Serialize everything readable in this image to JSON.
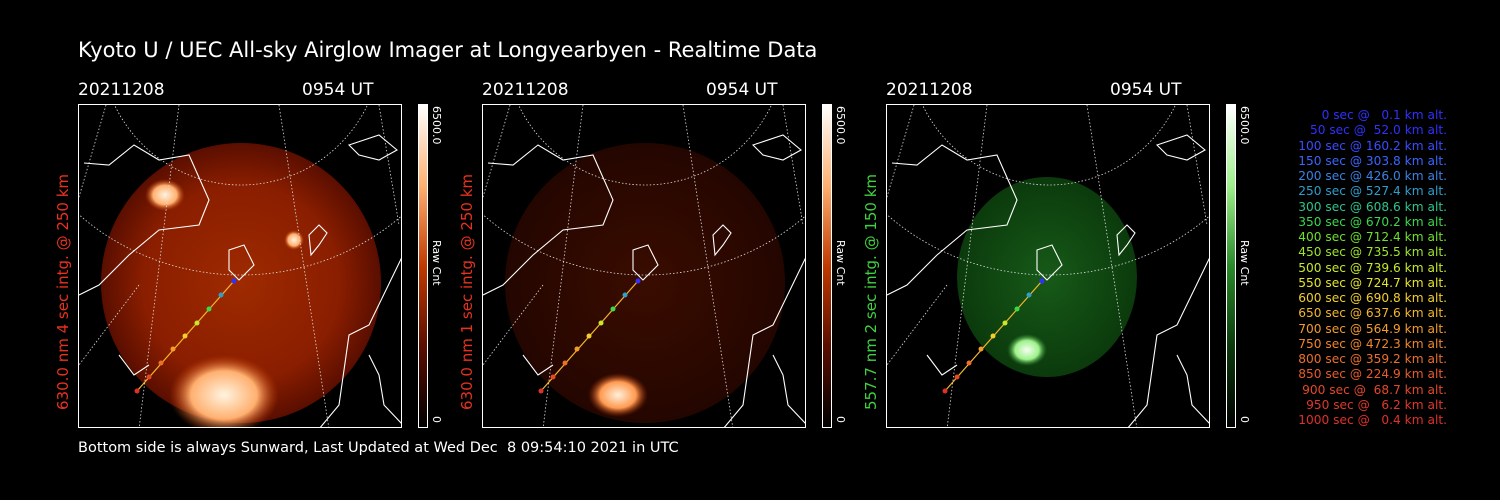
{
  "header": {
    "title": "Kyoto U / UEC All-sky Airglow Imager at Longyearbyen - Realtime Data"
  },
  "footer": {
    "text": "Bottom side is always Sunward, Last Updated at Wed Dec  8 09:54:10 2021 in UTC"
  },
  "panels": [
    {
      "date": "20211208",
      "time": "0954 UT",
      "side_label": "630.0 nm 4 sec intg. @ 250 km",
      "side_color": "#e8321e",
      "colorbar_max": "6500.0",
      "colorbar_label": "Raw Cnt",
      "colorbar_min": "0"
    },
    {
      "date": "20211208",
      "time": "0954 UT",
      "side_label": "630.0 nm 1 sec intg. @ 250 km",
      "side_color": "#e8321e",
      "colorbar_max": "6500.0",
      "colorbar_label": "Raw Cnt",
      "colorbar_min": "0"
    },
    {
      "date": "20211208",
      "time": "0954 UT",
      "side_label": "557.7 nm 2 sec intg. @ 150 km",
      "side_color": "#3fd13f",
      "colorbar_max": "6500.0",
      "colorbar_label": "Raw Cnt",
      "colorbar_min": "0"
    }
  ],
  "legend": [
    {
      "text": "0 sec @   0.1 km alt.",
      "color": "#3030ff"
    },
    {
      "text": "50 sec @  52.0 km alt.",
      "color": "#3030ff"
    },
    {
      "text": "100 sec @ 160.2 km alt.",
      "color": "#3a4cff"
    },
    {
      "text": "150 sec @ 303.8 km alt.",
      "color": "#3a66ff"
    },
    {
      "text": "200 sec @ 426.0 km alt.",
      "color": "#3a82e6"
    },
    {
      "text": "250 sec @ 527.4 km alt.",
      "color": "#2f9ecc"
    },
    {
      "text": "300 sec @ 608.6 km alt.",
      "color": "#2fc48c"
    },
    {
      "text": "350 sec @ 670.2 km alt.",
      "color": "#3ad84a"
    },
    {
      "text": "400 sec @ 712.4 km alt.",
      "color": "#6ee02c"
    },
    {
      "text": "450 sec @ 735.5 km alt.",
      "color": "#9ee42a"
    },
    {
      "text": "500 sec @ 739.6 km alt.",
      "color": "#c8e82a"
    },
    {
      "text": "550 sec @ 724.7 km alt.",
      "color": "#e6e42a"
    },
    {
      "text": "600 sec @ 690.8 km alt.",
      "color": "#f2d02a"
    },
    {
      "text": "650 sec @ 637.6 km alt.",
      "color": "#f4b62a"
    },
    {
      "text": "700 sec @ 564.9 km alt.",
      "color": "#f49c2a"
    },
    {
      "text": "750 sec @ 472.3 km alt.",
      "color": "#f0862a"
    },
    {
      "text": "800 sec @ 359.2 km alt.",
      "color": "#ec702a"
    },
    {
      "text": "850 sec @ 224.9 km alt.",
      "color": "#e85c2a"
    },
    {
      "text": "900 sec @  68.7 km alt.",
      "color": "#e4482a"
    },
    {
      "text": "950 sec @   6.2 km alt.",
      "color": "#e0382a"
    },
    {
      "text": "1000 sec @   0.4 km alt.",
      "color": "#e0302a"
    }
  ],
  "colors": {
    "red_glow": "#8a1a00",
    "green_glow": "#0f4a10",
    "coast": "#ffffff"
  }
}
